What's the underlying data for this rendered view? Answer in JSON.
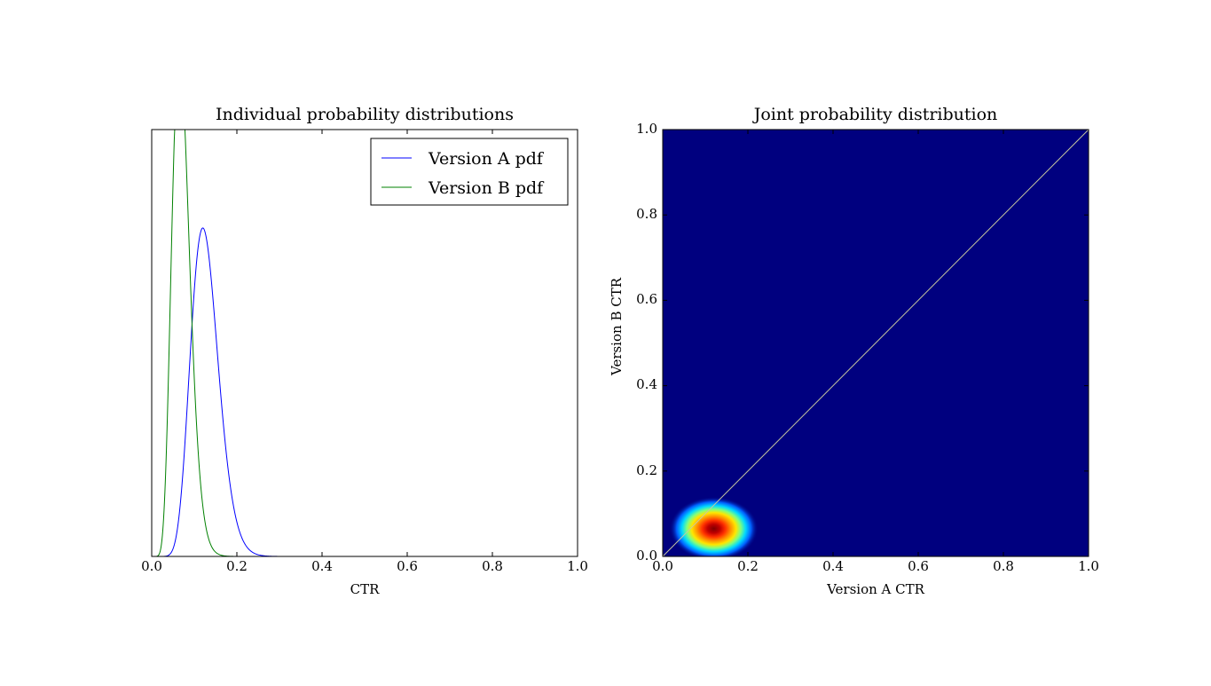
{
  "chart_data": [
    {
      "type": "line",
      "title": "Individual probability distributions",
      "xlabel": "CTR",
      "ylabel": "",
      "xlim": [
        0.0,
        1.0
      ],
      "xticks": [
        "0.0",
        "0.2",
        "0.4",
        "0.6",
        "0.8",
        "1.0"
      ],
      "yticks_visible": false,
      "legend_position": "top-right",
      "series": [
        {
          "name": "Version A pdf",
          "color": "#0000ff",
          "distribution": "beta",
          "mode": 0.12,
          "x": [
            0.0,
            0.02,
            0.04,
            0.06,
            0.08,
            0.1,
            0.12,
            0.14,
            0.16,
            0.18,
            0.2,
            0.22,
            0.24,
            0.26,
            0.28,
            0.3,
            0.35,
            1.0
          ],
          "y": [
            0.0,
            0.0,
            0.3,
            1.7,
            5.6,
            10.3,
            12.1,
            10.4,
            7.1,
            4.0,
            1.95,
            0.85,
            0.33,
            0.12,
            0.04,
            0.01,
            0.0,
            0.0
          ]
        },
        {
          "name": "Version B pdf",
          "color": "#008000",
          "distribution": "beta",
          "mode": 0.065,
          "x": [
            0.0,
            0.02,
            0.04,
            0.065,
            0.08,
            0.1,
            0.12,
            0.14,
            0.16,
            0.18,
            0.2,
            0.22,
            1.0
          ],
          "y": [
            0.0,
            0.7,
            8.4,
            15.9,
            14.0,
            8.8,
            4.2,
            1.65,
            0.55,
            0.16,
            0.04,
            0.0,
            0.0
          ]
        }
      ]
    },
    {
      "type": "heatmap",
      "title": "Joint probability distribution",
      "xlabel": "Version A CTR",
      "ylabel": "Version B CTR",
      "xlim": [
        0.0,
        1.0
      ],
      "ylim": [
        0.0,
        1.0
      ],
      "xticks": [
        "0.0",
        "0.2",
        "0.4",
        "0.6",
        "0.8",
        "1.0"
      ],
      "yticks": [
        "0.0",
        "0.2",
        "0.4",
        "0.6",
        "0.8",
        "1.0"
      ],
      "colormap": "jet",
      "peak": {
        "x": 0.12,
        "y": 0.065
      },
      "reference_line": {
        "from": [
          0.0,
          0.0
        ],
        "to": [
          1.0,
          1.0
        ],
        "color": "#c8c8a0"
      }
    }
  ]
}
